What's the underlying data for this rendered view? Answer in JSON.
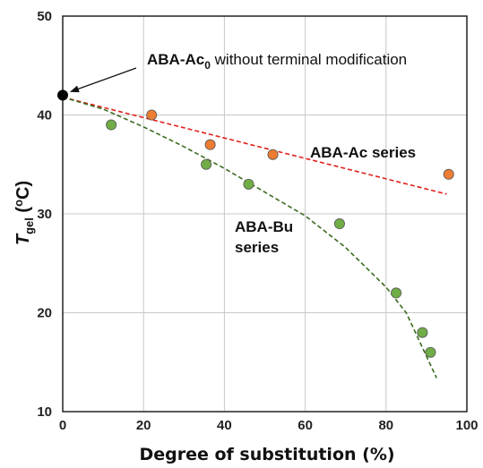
{
  "chart_data": {
    "type": "scatter",
    "xlabel": "Degree of substitution (%)",
    "ylabel": {
      "main": "T",
      "sub": "gel",
      "rest": " (",
      "sup": "o",
      "end": "C)"
    },
    "xlim": [
      0,
      100
    ],
    "ylim": [
      10,
      50
    ],
    "xticks": [
      0,
      20,
      40,
      60,
      80,
      100
    ],
    "yticks": [
      10,
      20,
      30,
      40,
      50
    ],
    "grid": true,
    "series": [
      {
        "name": "ABA-Ac series",
        "color": "#ed7d31",
        "points": [
          [
            22,
            40
          ],
          [
            36.5,
            37
          ],
          [
            52,
            36
          ],
          [
            95.5,
            34
          ]
        ],
        "trend": {
          "type": "linear",
          "color": "#e0201a",
          "from": [
            0,
            41.8
          ],
          "to": [
            95,
            32
          ]
        }
      },
      {
        "name": "ABA-Bu series",
        "label_lines": [
          "ABA-Bu",
          "series"
        ],
        "color": "#70ad47",
        "points": [
          [
            12,
            39
          ],
          [
            35.5,
            35
          ],
          [
            46,
            33
          ],
          [
            68.5,
            29
          ],
          [
            82.5,
            22
          ],
          [
            89,
            18
          ],
          [
            91,
            16
          ]
        ],
        "trend": {
          "type": "curve",
          "color": "#3a6b1f",
          "points": [
            [
              0,
              41.8
            ],
            [
              10,
              40.6
            ],
            [
              20,
              38.8
            ],
            [
              30,
              36.8
            ],
            [
              40,
              34.6
            ],
            [
              50,
              32.2
            ],
            [
              60,
              29.8
            ],
            [
              70,
              26.6
            ],
            [
              80,
              22.6
            ],
            [
              85,
              20.0
            ],
            [
              90,
              15.6
            ],
            [
              92.5,
              13.4
            ]
          ]
        }
      },
      {
        "name": "ABA-Ac0",
        "color": "#000000",
        "points": [
          [
            0,
            42
          ]
        ]
      }
    ],
    "annotation": {
      "bold": "ABA-Ac",
      "sub": "0",
      "rest": " without terminal modification",
      "target": [
        0,
        42
      ]
    }
  }
}
